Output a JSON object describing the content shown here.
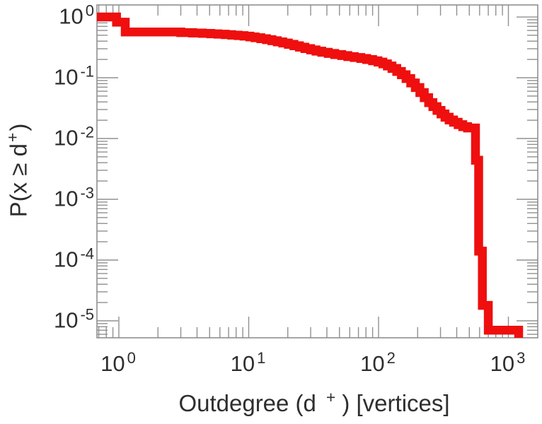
{
  "chart_data": {
    "type": "line",
    "subtype": "ccdf-staircase-loglog",
    "title": "",
    "xlabel": {
      "pre": "Outdegree (d",
      "sup": "+",
      "post": ") [vertices]"
    },
    "ylabel": {
      "pre": "P(x ≥ d",
      "sup": "+",
      "post": ")"
    },
    "x_scale": "log",
    "y_scale": "log",
    "x_range": [
      0.678,
      1683
    ],
    "y_range": [
      5.26e-06,
      1.577
    ],
    "grid": false,
    "legend": "none",
    "x_ticks": [
      {
        "base": "10",
        "exp": "0",
        "value": 1
      },
      {
        "base": "10",
        "exp": "1",
        "value": 10
      },
      {
        "base": "10",
        "exp": "2",
        "value": 100
      },
      {
        "base": "10",
        "exp": "3",
        "value": 1000
      }
    ],
    "y_ticks": [
      {
        "base": "10",
        "exp": "0",
        "value": 1
      },
      {
        "base": "10",
        "exp": "-1",
        "value": 0.1
      },
      {
        "base": "10",
        "exp": "-2",
        "value": 0.01
      },
      {
        "base": "10",
        "exp": "-3",
        "value": 0.001
      },
      {
        "base": "10",
        "exp": "-4",
        "value": 0.0001
      },
      {
        "base": "10",
        "exp": "-5",
        "value": 1e-05
      }
    ],
    "line_color": "#ee0f0e",
    "frame_color": "#909090",
    "text_color": "#2e2e2e",
    "background_color": "#ffffff",
    "line_width": 12.5,
    "points": [
      [
        0.678,
        1.0
      ],
      [
        0.96,
        0.82
      ],
      [
        1.12,
        0.565
      ],
      [
        3.0,
        0.553
      ],
      [
        3.7,
        0.545
      ],
      [
        4.4,
        0.537
      ],
      [
        5.1,
        0.528
      ],
      [
        5.8,
        0.52
      ],
      [
        6.6,
        0.512
      ],
      [
        7.4,
        0.503
      ],
      [
        8.3,
        0.494
      ],
      [
        9.2,
        0.484
      ],
      [
        10.2,
        0.47
      ],
      [
        11.2,
        0.455
      ],
      [
        12.4,
        0.44
      ],
      [
        13.7,
        0.424
      ],
      [
        15.1,
        0.407
      ],
      [
        16.6,
        0.39
      ],
      [
        18.3,
        0.372
      ],
      [
        20.2,
        0.354
      ],
      [
        22.3,
        0.336
      ],
      [
        24.6,
        0.318
      ],
      [
        27.1,
        0.302
      ],
      [
        30.0,
        0.287
      ],
      [
        33.0,
        0.274
      ],
      [
        36.5,
        0.262
      ],
      [
        41,
        0.251
      ],
      [
        46,
        0.241
      ],
      [
        52,
        0.232
      ],
      [
        58,
        0.223
      ],
      [
        65,
        0.215
      ],
      [
        73,
        0.207
      ],
      [
        81,
        0.199
      ],
      [
        90,
        0.19
      ],
      [
        99,
        0.181
      ],
      [
        108,
        0.169
      ],
      [
        117,
        0.156
      ],
      [
        127,
        0.142
      ],
      [
        138,
        0.127
      ],
      [
        150,
        0.112
      ],
      [
        163,
        0.097
      ],
      [
        177,
        0.082
      ],
      [
        192,
        0.069
      ],
      [
        208,
        0.057
      ],
      [
        225,
        0.047
      ],
      [
        243,
        0.039
      ],
      [
        262,
        0.0335
      ],
      [
        282,
        0.029
      ],
      [
        303,
        0.0253
      ],
      [
        325,
        0.0224
      ],
      [
        350,
        0.0202
      ],
      [
        378,
        0.0185
      ],
      [
        410,
        0.0169
      ],
      [
        445,
        0.0157
      ],
      [
        485,
        0.0149
      ],
      [
        558,
        0.0044
      ],
      [
        590,
        0.00014
      ],
      [
        630,
        1.8e-05
      ],
      [
        700,
        7e-06
      ],
      [
        1200,
        2.5e-06
      ]
    ]
  }
}
